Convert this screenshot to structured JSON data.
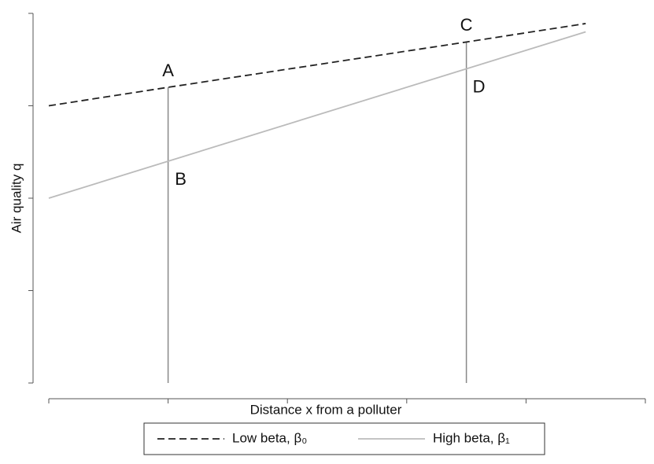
{
  "chart_data": {
    "type": "line",
    "x_label": "Distance x from a polluter",
    "y_label": "Air quality q",
    "x": [
      0,
      1,
      3.5,
      4.5
    ],
    "series": [
      {
        "name": "Low beta, β₀",
        "color": "#222222",
        "dash": "dashed",
        "values": [
          3.0,
          3.2,
          3.69,
          3.89
        ]
      },
      {
        "name": "High beta, β₁",
        "color": "#bbbbbb",
        "dash": "solid",
        "values": [
          2.0,
          2.4,
          3.4,
          3.8
        ]
      }
    ],
    "xlim": [
      0,
      5
    ],
    "xticks": [
      0,
      1,
      2,
      3,
      4,
      5
    ],
    "ylim": [
      0,
      4
    ],
    "yticks": [
      0,
      1,
      2,
      3,
      4
    ],
    "vlines": [
      {
        "x": 1,
        "ymax": 3.2,
        "color": "#888888"
      },
      {
        "x": 3.5,
        "ymax": 3.69,
        "color": "#888888"
      }
    ],
    "annotations": [
      {
        "text": "A",
        "x": 1,
        "y": 3.2,
        "position": "above"
      },
      {
        "text": "B",
        "x": 1,
        "y": 2.4,
        "position": "below"
      },
      {
        "text": "C",
        "x": 3.5,
        "y": 3.69,
        "position": "above"
      },
      {
        "text": "D",
        "x": 3.5,
        "y": 3.4,
        "position": "below"
      }
    ],
    "legend": "bottom"
  }
}
